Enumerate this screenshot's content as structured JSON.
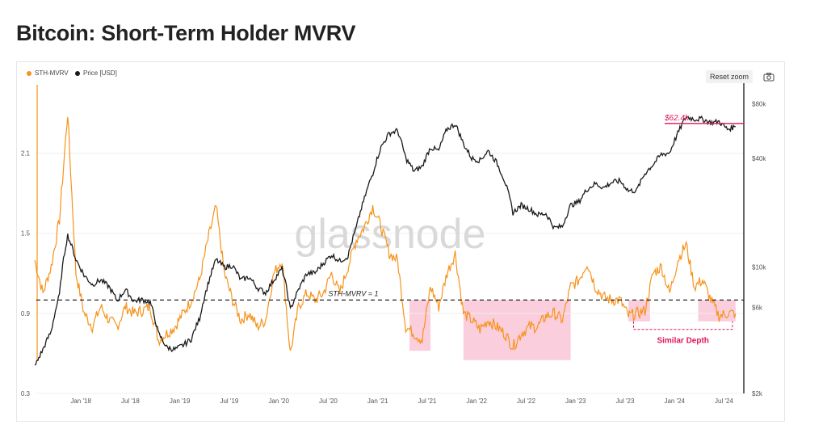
{
  "page_title": "Bitcoin: Short-Term Holder MVRV",
  "toolbar": {
    "reset_zoom": "Reset zoom",
    "camera_icon": "camera-icon"
  },
  "watermark": "glassnode",
  "colors": {
    "sth": "#f7931a",
    "price": "#1a1a1a",
    "highlight": "#f9c6d6",
    "accent": "#e0155e"
  },
  "chart_data": {
    "type": "line",
    "title": "Bitcoin: Short-Term Holder MVRV",
    "legend": [
      "STH-MVRV",
      "Price [USD]"
    ],
    "legend_position": "top-left",
    "x_ticks": [
      "Jan '18",
      "Jul '18",
      "Jan '19",
      "Jul '19",
      "Jan '20",
      "Jul '20",
      "Jan '21",
      "Jul '21",
      "Jan '22",
      "Jul '22",
      "Jan '23",
      "Jul '23",
      "Jan '24",
      "Jul '24"
    ],
    "y_left": {
      "ticks": [
        "2.1",
        "1.5",
        "0.9",
        "0.3"
      ],
      "range": [
        0.3,
        2.6
      ]
    },
    "y_right": {
      "ticks": [
        "$80k",
        "$40k",
        "$10k",
        "$6k",
        "$2k"
      ],
      "scale": "log",
      "range": [
        2000,
        100000
      ]
    },
    "grid": true,
    "series": [
      {
        "name": "STH-MVRV",
        "x": [
          "2017-08",
          "2017-09",
          "2017-10",
          "2017-11",
          "2017-12",
          "2018-01",
          "2018-02",
          "2018-03",
          "2018-04",
          "2018-05",
          "2018-06",
          "2018-07",
          "2018-08",
          "2018-09",
          "2018-10",
          "2018-11",
          "2018-12",
          "2019-01",
          "2019-02",
          "2019-03",
          "2019-04",
          "2019-05",
          "2019-06",
          "2019-07",
          "2019-08",
          "2019-09",
          "2019-10",
          "2019-11",
          "2019-12",
          "2020-01",
          "2020-02",
          "2020-03",
          "2020-04",
          "2020-05",
          "2020-06",
          "2020-07",
          "2020-08",
          "2020-09",
          "2020-10",
          "2020-11",
          "2020-12",
          "2021-01",
          "2021-02",
          "2021-03",
          "2021-04",
          "2021-05",
          "2021-06",
          "2021-07",
          "2021-08",
          "2021-09",
          "2021-10",
          "2021-11",
          "2021-12",
          "2022-01",
          "2022-02",
          "2022-03",
          "2022-04",
          "2022-05",
          "2022-06",
          "2022-07",
          "2022-08",
          "2022-09",
          "2022-10",
          "2022-11",
          "2022-12",
          "2023-01",
          "2023-02",
          "2023-03",
          "2023-04",
          "2023-05",
          "2023-06",
          "2023-07",
          "2023-08",
          "2023-09",
          "2023-10",
          "2023-11",
          "2023-12",
          "2024-01",
          "2024-02",
          "2024-03",
          "2024-04",
          "2024-05",
          "2024-06",
          "2024-07",
          "2024-08",
          "2024-09"
        ],
        "values": [
          1.3,
          1.05,
          1.25,
          1.6,
          2.4,
          1.2,
          0.9,
          0.8,
          0.95,
          0.85,
          0.8,
          0.95,
          0.9,
          0.92,
          0.95,
          0.7,
          0.75,
          0.8,
          0.9,
          1.0,
          1.15,
          1.45,
          1.7,
          1.2,
          1.0,
          0.85,
          0.9,
          0.8,
          0.85,
          1.2,
          1.3,
          0.6,
          0.95,
          1.05,
          1.0,
          1.05,
          1.2,
          1.05,
          1.25,
          1.45,
          1.55,
          1.7,
          1.55,
          1.35,
          1.3,
          0.8,
          0.75,
          0.7,
          1.1,
          0.95,
          1.2,
          1.35,
          0.9,
          0.85,
          0.78,
          0.85,
          0.8,
          0.75,
          0.65,
          0.75,
          0.8,
          0.8,
          0.88,
          0.9,
          0.85,
          1.1,
          1.15,
          1.28,
          1.1,
          1.02,
          1.0,
          1.0,
          0.88,
          0.9,
          0.92,
          1.2,
          1.25,
          1.05,
          1.3,
          1.42,
          1.1,
          1.15,
          1.0,
          0.88,
          0.9,
          0.9
        ]
      },
      {
        "name": "Price [USD]",
        "x": [
          "2017-08",
          "2017-09",
          "2017-10",
          "2017-11",
          "2017-12",
          "2018-01",
          "2018-02",
          "2018-03",
          "2018-04",
          "2018-05",
          "2018-06",
          "2018-07",
          "2018-08",
          "2018-09",
          "2018-10",
          "2018-11",
          "2018-12",
          "2019-01",
          "2019-02",
          "2019-03",
          "2019-04",
          "2019-05",
          "2019-06",
          "2019-07",
          "2019-08",
          "2019-09",
          "2019-10",
          "2019-11",
          "2019-12",
          "2020-01",
          "2020-02",
          "2020-03",
          "2020-04",
          "2020-05",
          "2020-06",
          "2020-07",
          "2020-08",
          "2020-09",
          "2020-10",
          "2020-11",
          "2020-12",
          "2021-01",
          "2021-02",
          "2021-03",
          "2021-04",
          "2021-05",
          "2021-06",
          "2021-07",
          "2021-08",
          "2021-09",
          "2021-10",
          "2021-11",
          "2021-12",
          "2022-01",
          "2022-02",
          "2022-03",
          "2022-04",
          "2022-05",
          "2022-06",
          "2022-07",
          "2022-08",
          "2022-09",
          "2022-10",
          "2022-11",
          "2022-12",
          "2023-01",
          "2023-02",
          "2023-03",
          "2023-04",
          "2023-05",
          "2023-06",
          "2023-07",
          "2023-08",
          "2023-09",
          "2023-10",
          "2023-11",
          "2023-12",
          "2024-01",
          "2024-02",
          "2024-03",
          "2024-04",
          "2024-05",
          "2024-06",
          "2024-07",
          "2024-08",
          "2024-09"
        ],
        "values": [
          2800,
          3500,
          4400,
          7000,
          15000,
          11000,
          9000,
          8000,
          8500,
          7800,
          6500,
          7500,
          6500,
          6600,
          6400,
          4300,
          3600,
          3500,
          3700,
          4000,
          5200,
          8000,
          11000,
          10000,
          10200,
          8500,
          8800,
          7700,
          7200,
          8500,
          9800,
          5800,
          7500,
          9200,
          9300,
          10500,
          11700,
          10800,
          11500,
          16500,
          24000,
          33000,
          46000,
          55000,
          57000,
          40000,
          34000,
          36000,
          46000,
          44000,
          58000,
          62000,
          48000,
          40000,
          39000,
          44000,
          38000,
          30000,
          20000,
          22000,
          21000,
          19500,
          19800,
          16500,
          16800,
          22000,
          23000,
          27000,
          29000,
          27500,
          29500,
          30000,
          26500,
          26500,
          33000,
          37000,
          42000,
          43000,
          55000,
          68000,
          66000,
          66000,
          63000,
          64000,
          58000,
          60000
        ]
      }
    ],
    "annotations": {
      "threshold_label": "STH-MVRV = 1",
      "threshold_value": 1.0,
      "price_label": "$62.4k",
      "price_value": 62400,
      "note": "Similar Depth",
      "highlight_ranges": [
        [
          "2021-05-15",
          "2021-08-01"
        ],
        [
          "2021-12-01",
          "2023-01-01"
        ],
        [
          "2023-08-01",
          "2023-10-20"
        ],
        [
          "2024-04-15",
          "2024-09-01"
        ]
      ]
    }
  }
}
